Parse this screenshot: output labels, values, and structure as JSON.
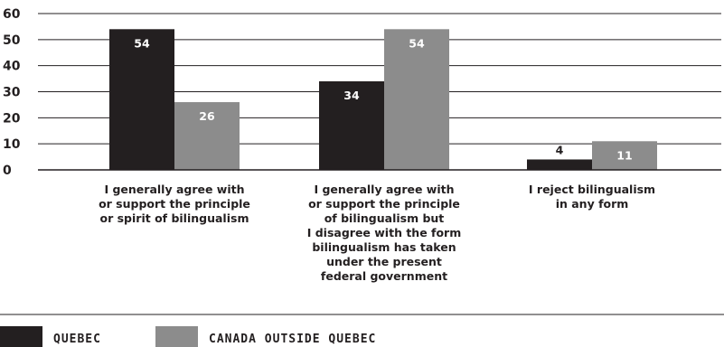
{
  "chart_data": {
    "type": "bar",
    "title": "",
    "xlabel": "",
    "ylabel": "",
    "ylim": [
      0,
      60
    ],
    "yticks": [
      0,
      10,
      20,
      30,
      40,
      50,
      60
    ],
    "grid": true,
    "legend_position": "bottom-left",
    "categories": [
      [
        "I generally agree with",
        "or support the principle",
        "or spirit of bilingualism"
      ],
      [
        "I generally agree with",
        "or support the principle",
        "of bilingualism but",
        "I disagree with the form",
        "bilingualism has taken",
        "under the present",
        "federal government"
      ],
      [
        "I reject bilingualism",
        "in any form"
      ]
    ],
    "series": [
      {
        "name": "QUEBEC",
        "color": "#231f20",
        "label_color": "#ffffff",
        "values": [
          54,
          34,
          4
        ]
      },
      {
        "name": "CANADA OUTSIDE QUEBEC",
        "color": "#8c8c8c",
        "label_color": "#ffffff",
        "values": [
          26,
          54,
          11
        ]
      }
    ],
    "value_labels": [
      [
        "54",
        "34",
        "4"
      ],
      [
        "26",
        "54",
        "11"
      ]
    ]
  }
}
